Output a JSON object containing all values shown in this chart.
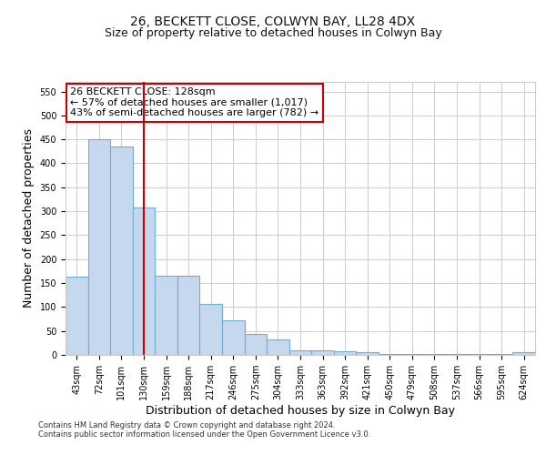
{
  "title_line1": "26, BECKETT CLOSE, COLWYN BAY, LL28 4DX",
  "title_line2": "Size of property relative to detached houses in Colwyn Bay",
  "xlabel": "Distribution of detached houses by size in Colwyn Bay",
  "ylabel": "Number of detached properties",
  "categories": [
    "43sqm",
    "72sqm",
    "101sqm",
    "130sqm",
    "159sqm",
    "188sqm",
    "217sqm",
    "246sqm",
    "275sqm",
    "304sqm",
    "333sqm",
    "363sqm",
    "392sqm",
    "421sqm",
    "450sqm",
    "479sqm",
    "508sqm",
    "537sqm",
    "566sqm",
    "595sqm",
    "624sqm"
  ],
  "values": [
    163,
    450,
    435,
    307,
    165,
    165,
    106,
    73,
    44,
    33,
    10,
    10,
    8,
    5,
    2,
    2,
    1,
    1,
    1,
    1,
    5
  ],
  "bar_color": "#c5d8ed",
  "bar_edge_color": "#6fadd4",
  "subject_bar_index": 3,
  "subject_line_color": "#cc0000",
  "ylim": [
    0,
    570
  ],
  "yticks": [
    0,
    50,
    100,
    150,
    200,
    250,
    300,
    350,
    400,
    450,
    500,
    550
  ],
  "annotation_box_text": "26 BECKETT CLOSE: 128sqm\n← 57% of detached houses are smaller (1,017)\n43% of semi-detached houses are larger (782) →",
  "annotation_box_color": "#ffffff",
  "annotation_box_edge_color": "#cc0000",
  "footer_text": "Contains HM Land Registry data © Crown copyright and database right 2024.\nContains public sector information licensed under the Open Government Licence v3.0.",
  "bg_color": "#ffffff",
  "grid_color": "#cccccc",
  "title_fontsize": 10,
  "subtitle_fontsize": 9,
  "axis_label_fontsize": 9,
  "tick_fontsize": 7,
  "annotation_fontsize": 8,
  "footer_fontsize": 6
}
